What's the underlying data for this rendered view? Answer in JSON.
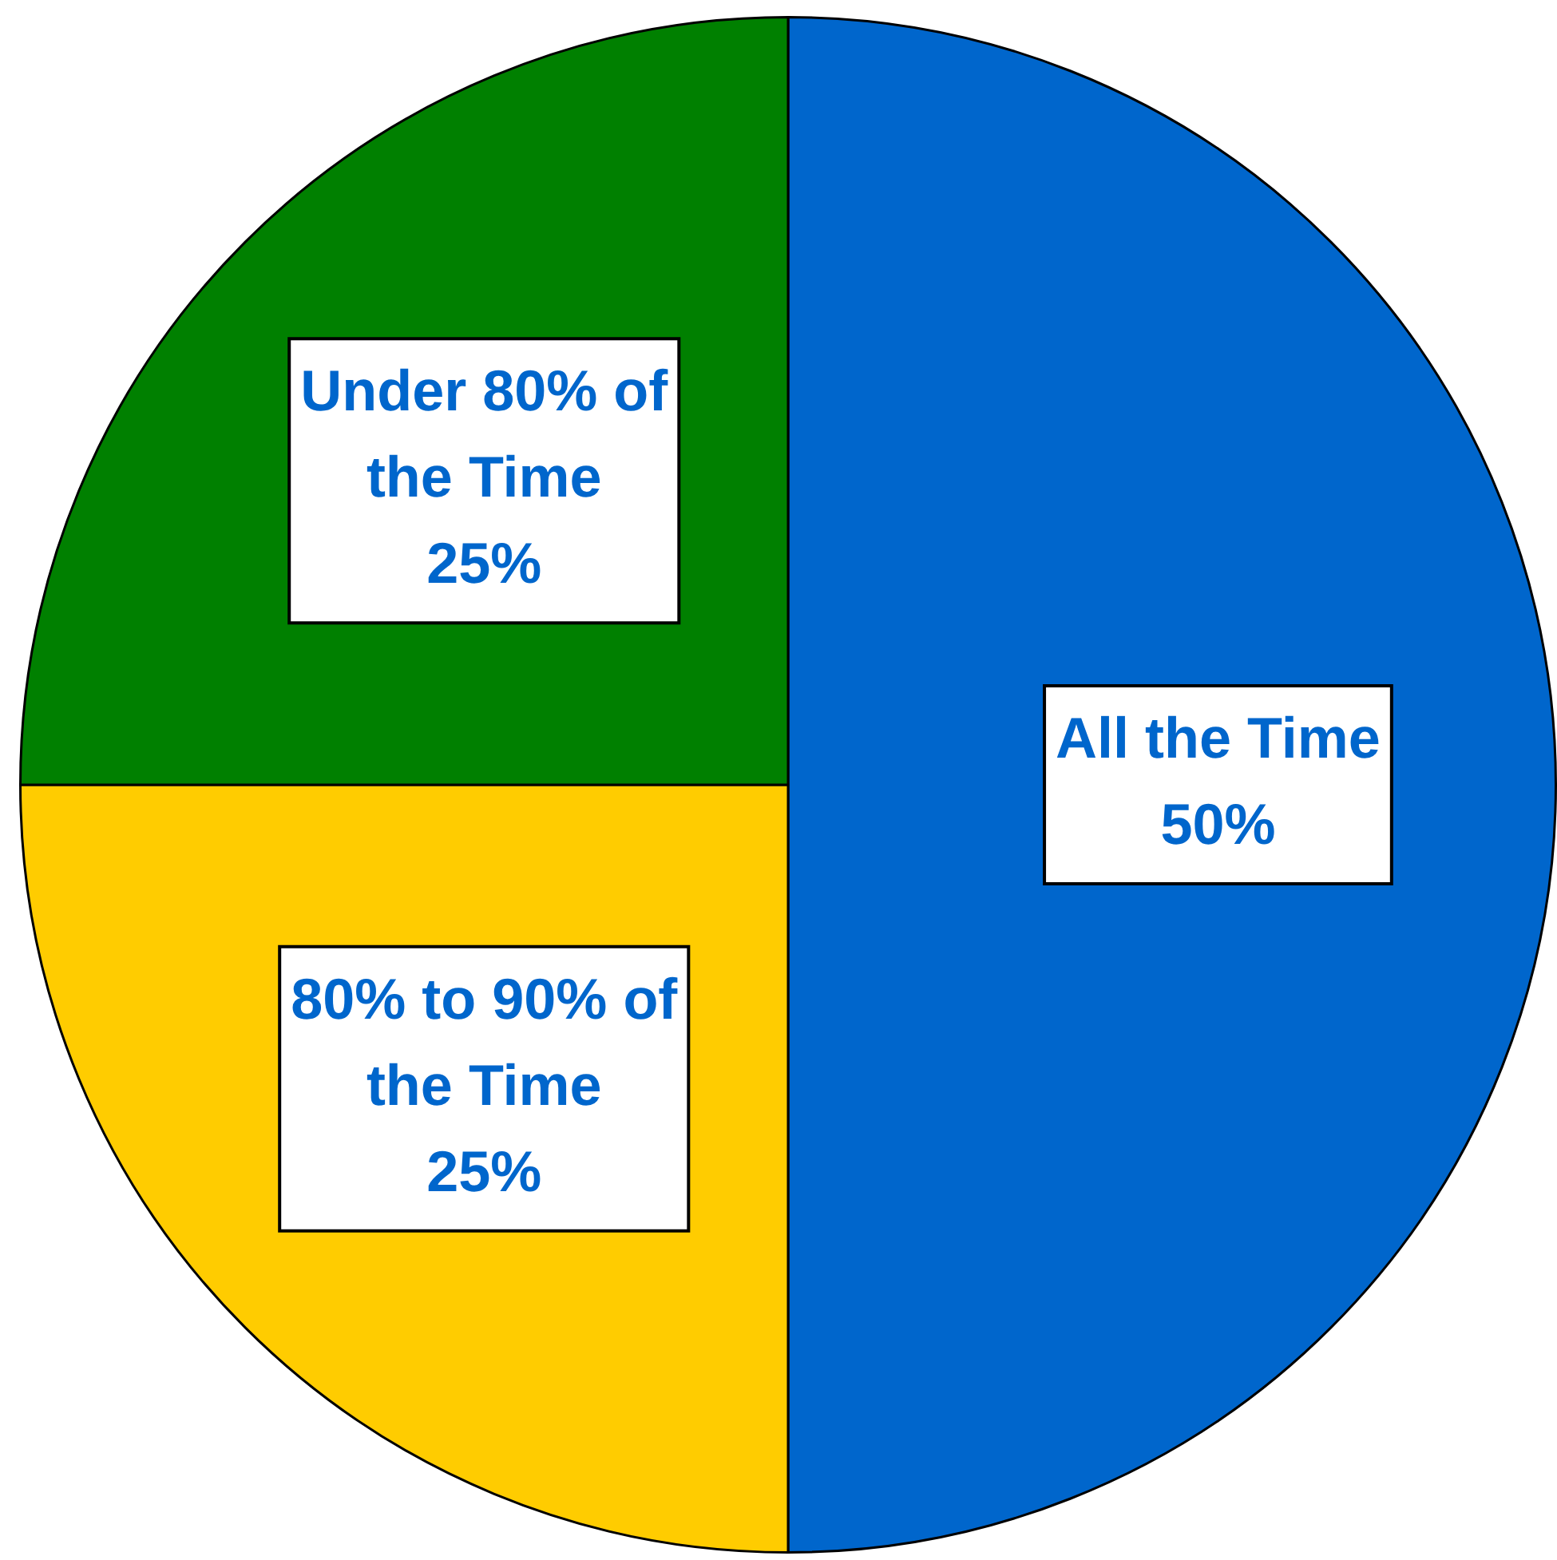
{
  "chart_data": {
    "type": "pie",
    "categories": [
      "All the Time",
      "80% to 90% of the Time",
      "Under 80% of the Time"
    ],
    "values": [
      50,
      25,
      25
    ],
    "value_labels": [
      "50%",
      "25%",
      "25%"
    ],
    "colors": [
      "#0066cc",
      "#ffcc00",
      "#008000"
    ],
    "legend": false
  }
}
